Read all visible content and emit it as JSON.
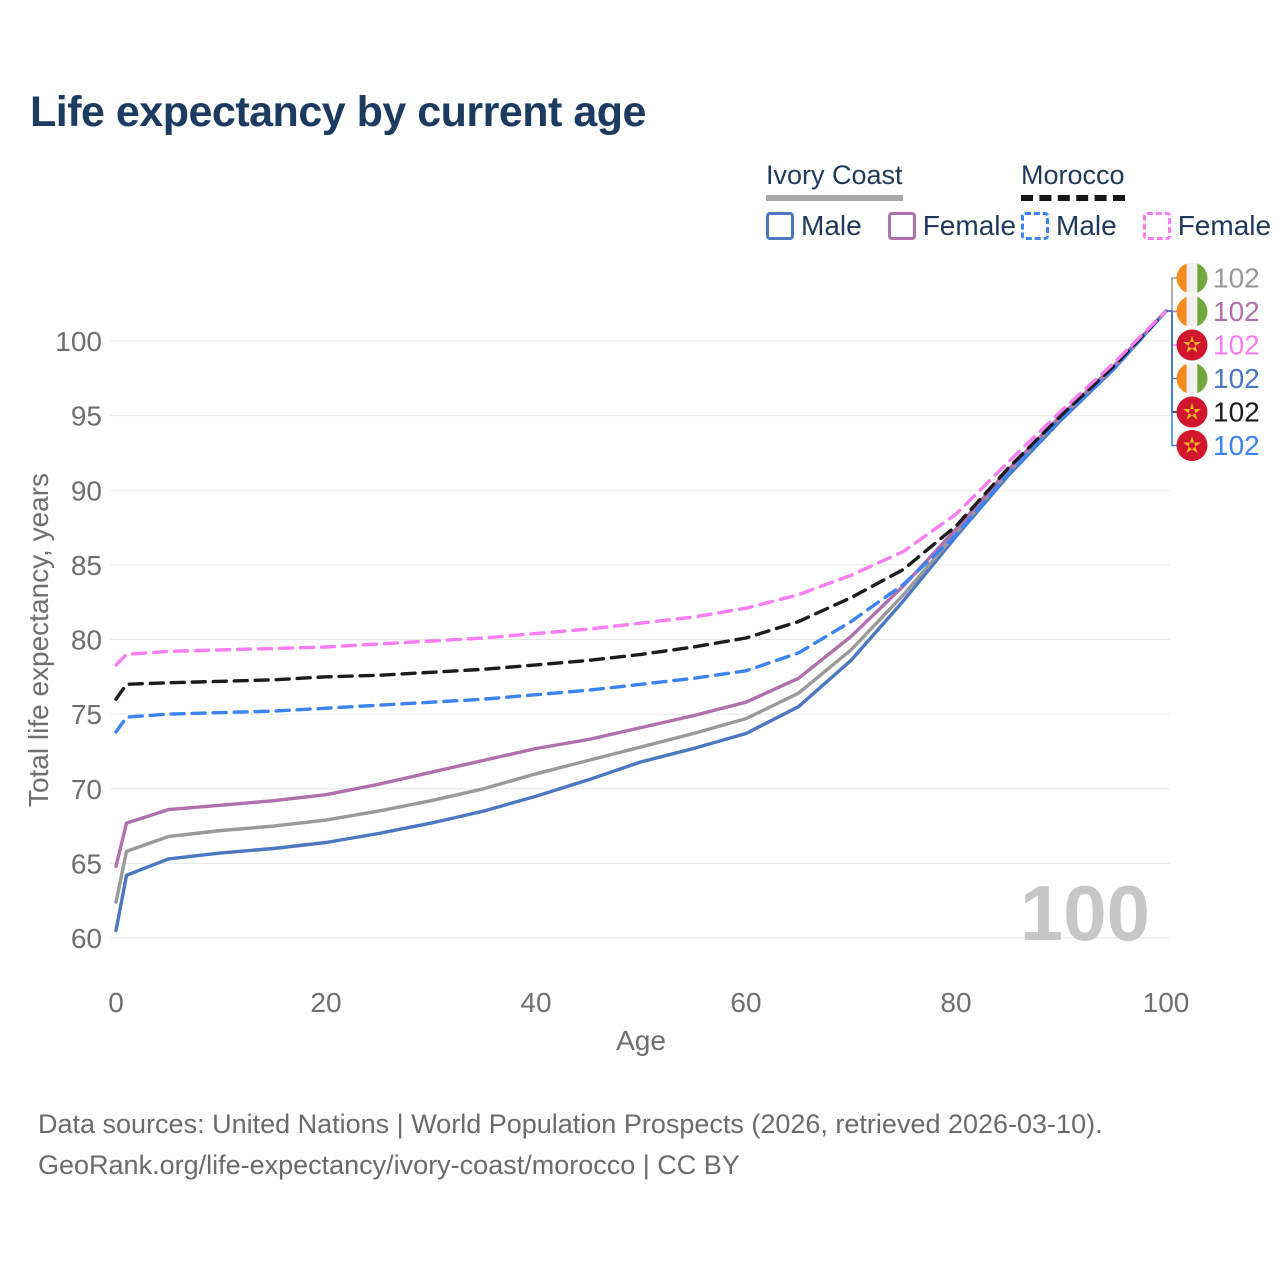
{
  "title": "Life expectancy by current age",
  "legend": {
    "groups": [
      {
        "label": "Ivory Coast",
        "line_style": "solid",
        "underline_color": "#a8a8a8",
        "items": [
          {
            "label": "Male",
            "color": "#4b78c1"
          },
          {
            "label": "Female",
            "color": "#b06fad"
          }
        ]
      },
      {
        "label": "Morocco",
        "line_style": "dashed",
        "underline_color": "#161616",
        "items": [
          {
            "label": "Male",
            "color": "#3b84f2"
          },
          {
            "label": "Female",
            "color": "#fa7df3"
          }
        ]
      }
    ]
  },
  "chart_data": {
    "type": "line",
    "title": "Life expectancy by current age",
    "xlabel": "Age",
    "ylabel": "Total life expectancy, years",
    "xlim": [
      0,
      100
    ],
    "ylim": [
      60,
      102
    ],
    "x_ticks": [
      0,
      20,
      40,
      60,
      80,
      100
    ],
    "y_ticks": [
      60,
      65,
      70,
      75,
      80,
      85,
      90,
      95,
      100
    ],
    "grid": "horizontal",
    "legend_position": "top-right",
    "age_indicator": "100",
    "x": [
      0,
      1,
      5,
      10,
      15,
      20,
      25,
      30,
      35,
      40,
      45,
      50,
      55,
      60,
      65,
      70,
      75,
      80,
      85,
      90,
      95,
      100
    ],
    "series": [
      {
        "name": "Ivory Coast Male",
        "country": "Ivory Coast",
        "group_label": "Male",
        "color": "#4b78c1",
        "dashed": false,
        "flag": "ivory-coast",
        "end_label": "102",
        "label_row": 3,
        "values": [
          60.5,
          64.2,
          65.3,
          65.7,
          66.0,
          66.4,
          67.0,
          67.7,
          68.5,
          69.5,
          70.6,
          71.8,
          72.7,
          73.7,
          75.5,
          78.6,
          82.6,
          86.9,
          91.0,
          94.7,
          98.1,
          102.0
        ]
      },
      {
        "name": "Ivory Coast",
        "country": "Ivory Coast",
        "group_label": "Ivory Coast",
        "color": "#9a9a9a",
        "dashed": false,
        "flag": "ivory-coast",
        "end_label": "102",
        "label_row": 0,
        "values": [
          62.4,
          65.8,
          66.8,
          67.2,
          67.5,
          67.9,
          68.5,
          69.2,
          70.0,
          71.0,
          71.9,
          72.8,
          73.7,
          74.7,
          76.4,
          79.3,
          83.0,
          87.1,
          91.2,
          94.9,
          98.2,
          102.0
        ]
      },
      {
        "name": "Ivory Coast Female",
        "country": "Ivory Coast",
        "group_label": "Female",
        "color": "#b06fad",
        "dashed": false,
        "flag": "ivory-coast",
        "end_label": "102",
        "label_row": 1,
        "values": [
          64.8,
          67.7,
          68.6,
          68.9,
          69.2,
          69.6,
          70.3,
          71.1,
          71.9,
          72.7,
          73.3,
          74.1,
          74.9,
          75.8,
          77.4,
          80.2,
          83.6,
          87.4,
          91.4,
          95.0,
          98.3,
          102.0
        ]
      },
      {
        "name": "Morocco Male",
        "country": "Morocco",
        "group_label": "Male",
        "color": "#3b84f2",
        "dashed": true,
        "flag": "morocco",
        "end_label": "102",
        "label_row": 5,
        "values": [
          73.8,
          74.8,
          75.0,
          75.1,
          75.2,
          75.4,
          75.6,
          75.8,
          76.0,
          76.3,
          76.6,
          77.0,
          77.4,
          77.9,
          79.1,
          81.2,
          83.7,
          87.0,
          91.1,
          94.8,
          98.1,
          102.0
        ]
      },
      {
        "name": "Morocco",
        "country": "Morocco",
        "group_label": "Morocco",
        "color": "#1c1c1c",
        "dashed": true,
        "flag": "morocco",
        "end_label": "102",
        "label_row": 4,
        "values": [
          76.0,
          77.0,
          77.1,
          77.2,
          77.3,
          77.5,
          77.6,
          77.8,
          78.0,
          78.3,
          78.6,
          79.0,
          79.5,
          80.1,
          81.2,
          82.8,
          84.7,
          87.6,
          91.5,
          95.0,
          98.3,
          102.0
        ]
      },
      {
        "name": "Morocco Female",
        "country": "Morocco",
        "group_label": "Female",
        "color": "#fa7df3",
        "dashed": true,
        "flag": "morocco",
        "end_label": "102",
        "label_row": 2,
        "values": [
          78.3,
          79.0,
          79.2,
          79.3,
          79.4,
          79.5,
          79.7,
          79.9,
          80.1,
          80.4,
          80.7,
          81.1,
          81.5,
          82.1,
          83.0,
          84.3,
          85.9,
          88.4,
          91.9,
          95.3,
          98.5,
          102.0
        ]
      }
    ],
    "flag_colors": {
      "ivory_coast": [
        "#f68b1f",
        "#f2f1ef",
        "#70a83e"
      ],
      "morocco_red": "#d0152d",
      "morocco_star": "#f3b229"
    }
  },
  "footer": {
    "line1": "Data sources: United Nations | World Population Prospects (2026, retrieved 2026-03-10).",
    "line2": "GeoRank.org/life-expectancy/ivory-coast/morocco | CC BY"
  }
}
